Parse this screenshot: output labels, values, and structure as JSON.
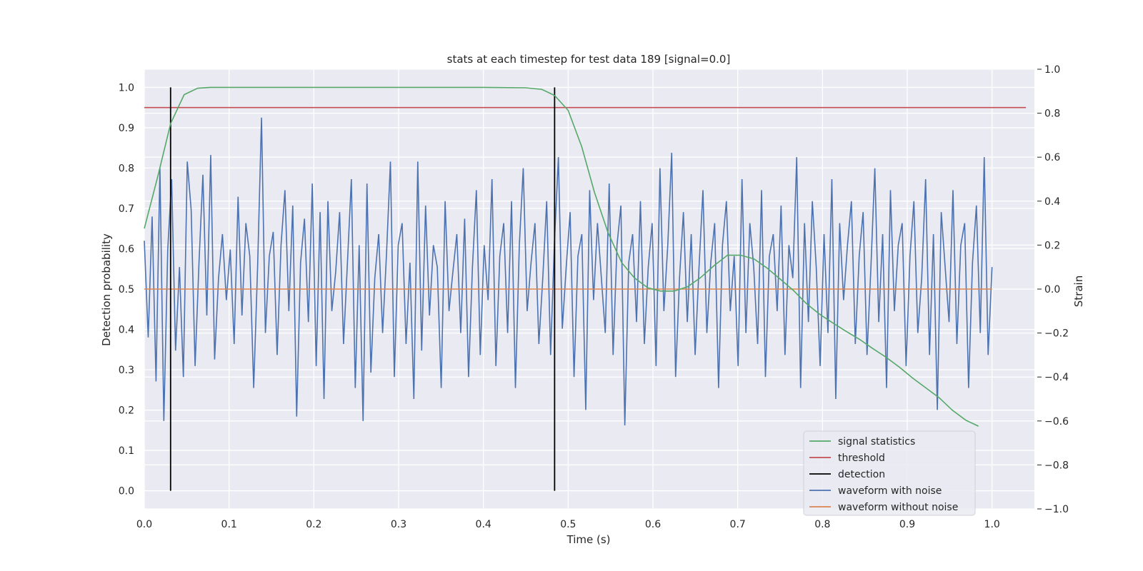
{
  "chart_data": {
    "type": "line",
    "title": "stats at each timestep for test data 189 [signal=0.0]",
    "xlabel": "Time (s)",
    "ylabel": "Detection probability",
    "ylabel_right": "Strain",
    "xlim": [
      0.0,
      1.05
    ],
    "ylim": [
      -0.045,
      1.045
    ],
    "ylim_right": [
      -1.0,
      1.0
    ],
    "xticks": [
      "0.0",
      "0.1",
      "0.2",
      "0.3",
      "0.4",
      "0.5",
      "0.6",
      "0.7",
      "0.8",
      "0.9",
      "1.0"
    ],
    "yticks": [
      "0.0",
      "0.1",
      "0.2",
      "0.3",
      "0.4",
      "0.5",
      "0.6",
      "0.7",
      "0.8",
      "0.9",
      "1.0"
    ],
    "yticks_right": [
      "−1.0",
      "−0.8",
      "−0.6",
      "−0.4",
      "−0.2",
      "0.0",
      "0.2",
      "0.4",
      "0.6",
      "0.8",
      "1.0"
    ],
    "grid": true,
    "legend_position": "lower right",
    "series": [
      {
        "name": "signal statistics",
        "axis": "left",
        "color": "#55a868",
        "x": [
          0.0,
          0.016,
          0.031,
          0.047,
          0.063,
          0.078,
          0.1,
          0.2,
          0.3,
          0.4,
          0.45,
          0.469,
          0.484,
          0.5,
          0.516,
          0.531,
          0.547,
          0.563,
          0.578,
          0.594,
          0.609,
          0.625,
          0.641,
          0.656,
          0.672,
          0.688,
          0.703,
          0.719,
          0.734,
          0.75,
          0.766,
          0.781,
          0.797,
          0.813,
          0.828,
          0.844,
          0.859,
          0.875,
          0.891,
          0.906,
          0.922,
          0.938,
          0.953,
          0.969,
          0.984
        ],
        "values": [
          0.65,
          0.78,
          0.91,
          0.982,
          0.998,
          1.0,
          1.0,
          1.0,
          1.0,
          1.0,
          0.999,
          0.995,
          0.98,
          0.943,
          0.853,
          0.74,
          0.64,
          0.566,
          0.528,
          0.503,
          0.495,
          0.495,
          0.506,
          0.528,
          0.558,
          0.584,
          0.584,
          0.575,
          0.553,
          0.525,
          0.496,
          0.464,
          0.437,
          0.415,
          0.395,
          0.375,
          0.353,
          0.331,
          0.306,
          0.28,
          0.255,
          0.23,
          0.2,
          0.175,
          0.16
        ]
      },
      {
        "name": "threshold",
        "axis": "left",
        "color": "#c44e52",
        "x": [
          0.0,
          1.04
        ],
        "values": [
          0.95,
          0.95
        ]
      },
      {
        "name": "detection",
        "axis": "left",
        "color": "#000000",
        "vlines": [
          0.031,
          0.484
        ],
        "range": [
          0.0,
          1.0
        ]
      },
      {
        "name": "waveform with noise",
        "axis": "right",
        "color": "#4c72b0",
        "description_note": "",
        "x_start": 0.0,
        "x_end": 1.0,
        "values": [
          0.22,
          -0.22,
          0.33,
          -0.42,
          0.55,
          -0.6,
          0.18,
          0.5,
          -0.28,
          0.1,
          -0.4,
          0.58,
          0.36,
          -0.35,
          0.12,
          0.52,
          -0.12,
          0.61,
          -0.32,
          0.05,
          0.25,
          -0.05,
          0.18,
          -0.25,
          0.42,
          -0.12,
          0.3,
          0.15,
          -0.45,
          0.1,
          0.78,
          -0.2,
          0.15,
          0.26,
          -0.3,
          0.2,
          0.45,
          -0.1,
          0.38,
          -0.58,
          0.12,
          0.32,
          -0.15,
          0.48,
          -0.35,
          0.35,
          -0.5,
          0.4,
          -0.1,
          0.08,
          0.35,
          -0.25,
          0.12,
          0.5,
          -0.45,
          0.2,
          -0.6,
          0.48,
          -0.38,
          0.05,
          0.25,
          -0.2,
          0.16,
          0.58,
          -0.4,
          0.2,
          0.3,
          -0.25,
          0.12,
          -0.5,
          0.58,
          -0.28,
          0.38,
          -0.12,
          0.2,
          0.1,
          -0.45,
          0.4,
          -0.1,
          0.08,
          0.25,
          -0.2,
          0.32,
          -0.4,
          0.1,
          0.45,
          -0.3,
          0.2,
          -0.05,
          0.5,
          -0.35,
          0.15,
          0.3,
          -0.2,
          0.4,
          -0.45,
          0.2,
          0.55,
          -0.1,
          0.12,
          0.3,
          -0.25,
          0.05,
          0.4,
          -0.3,
          0.22,
          0.6,
          -0.18,
          0.1,
          0.35,
          -0.4,
          0.15,
          0.25,
          -0.55,
          0.45,
          -0.05,
          0.3,
          0.05,
          -0.2,
          0.48,
          -0.3,
          0.2,
          0.38,
          -0.62,
          0.12,
          0.25,
          -0.15,
          0.4,
          -0.25,
          0.1,
          0.3,
          -0.35,
          0.55,
          -0.1,
          0.2,
          0.62,
          -0.4,
          0.05,
          0.35,
          -0.15,
          0.25,
          -0.3,
          0.1,
          0.45,
          -0.2,
          0.12,
          0.3,
          -0.45,
          0.2,
          0.4,
          -0.1,
          0.15,
          -0.35,
          0.5,
          -0.2,
          0.3,
          0.1,
          -0.25,
          0.45,
          -0.4,
          0.15,
          0.25,
          -0.1,
          0.38,
          -0.3,
          0.2,
          0.05,
          0.6,
          -0.45,
          0.3,
          -0.15,
          0.4,
          0.1,
          -0.35,
          0.25,
          -0.2,
          0.5,
          -0.5,
          0.3,
          -0.05,
          0.2,
          0.4,
          -0.25,
          0.15,
          0.35,
          -0.3,
          0.1,
          0.55,
          -0.15,
          0.25,
          -0.45,
          0.45,
          -0.1,
          0.2,
          0.3,
          -0.35,
          0.15,
          0.4,
          -0.2,
          0.05,
          0.5,
          -0.3,
          0.25,
          -0.55,
          0.35,
          0.1,
          -0.15,
          0.45,
          -0.25,
          0.2,
          0.3,
          -0.45,
          0.12,
          0.38,
          -0.2,
          0.6,
          -0.3,
          0.1
        ]
      },
      {
        "name": "waveform without noise",
        "axis": "right",
        "color": "#dd8452",
        "x": [
          0.0,
          1.0
        ],
        "values": [
          0.0,
          0.0
        ]
      }
    ]
  },
  "legend": {
    "items": [
      {
        "label": "signal statistics",
        "color": "#55a868"
      },
      {
        "label": "threshold",
        "color": "#c44e52"
      },
      {
        "label": "detection",
        "color": "#000000"
      },
      {
        "label": "waveform with noise",
        "color": "#4c72b0"
      },
      {
        "label": "waveform without noise",
        "color": "#dd8452"
      }
    ]
  },
  "colors": {
    "plot_background": "#eaeaf2",
    "grid": "#ffffff"
  }
}
